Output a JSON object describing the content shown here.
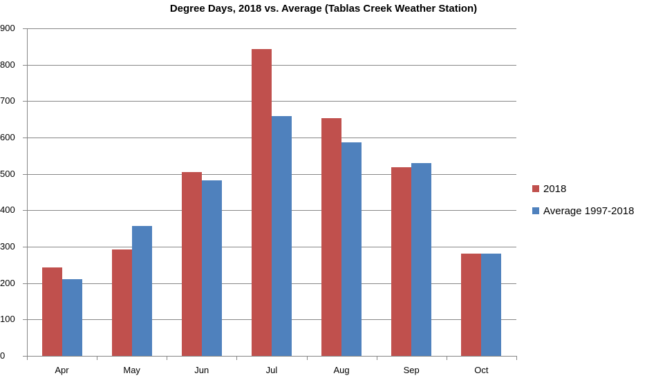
{
  "chart_data": {
    "type": "bar",
    "title": "Degree Days, 2018 vs. Average (Tablas Creek Weather Station)",
    "xlabel": "",
    "ylabel": "",
    "ylim": [
      0,
      900
    ],
    "yticks": [
      0,
      100,
      200,
      300,
      400,
      500,
      600,
      700,
      800,
      900
    ],
    "grid": true,
    "legend_position": "right",
    "categories": [
      "Apr",
      "May",
      "Jun",
      "Jul",
      "Aug",
      "Sep",
      "Oct"
    ],
    "series": [
      {
        "name": "2018",
        "color": "#C0504D",
        "values": [
          243,
          293,
          506,
          844,
          654,
          519,
          281
        ]
      },
      {
        "name": "Average 1997-2018",
        "color": "#4F81BD",
        "values": [
          211,
          357,
          483,
          658,
          587,
          529,
          281
        ]
      }
    ]
  }
}
